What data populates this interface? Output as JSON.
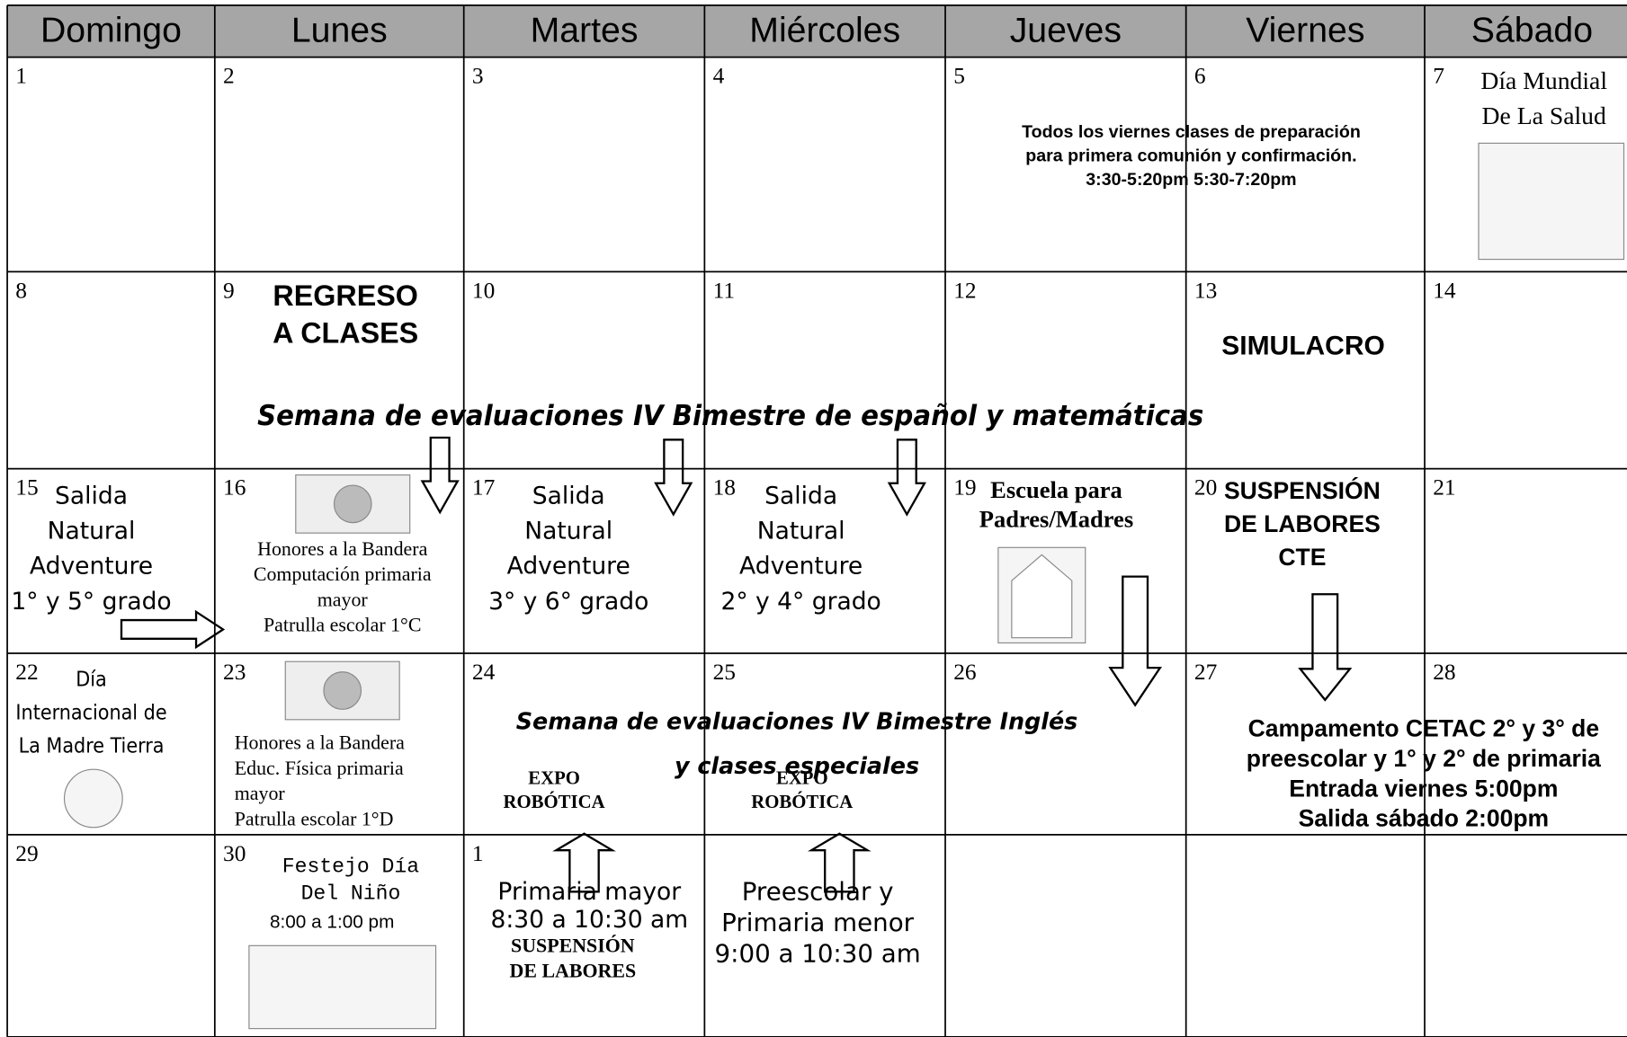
{
  "days": [
    "Domingo",
    "Lunes",
    "Martes",
    "Miércoles",
    "Jueves",
    "Viernes",
    "Sábado"
  ],
  "weeks": [
    [
      1,
      2,
      3,
      4,
      5,
      6,
      7
    ],
    [
      8,
      9,
      10,
      11,
      12,
      13,
      14
    ],
    [
      15,
      16,
      17,
      18,
      19,
      20,
      21
    ],
    [
      22,
      23,
      24,
      25,
      26,
      27,
      28
    ],
    [
      29,
      30,
      1,
      null,
      null,
      null,
      null
    ]
  ],
  "notes": [
    {
      "lines": [
        "Día Mundial",
        "De La Salud"
      ]
    },
    {
      "lines": [
        "Todos los viernes clases de preparación",
        "para primera comunión y confirmación.",
        "3:30-5:20pm    5:30-7:20pm"
      ]
    },
    {
      "lines": [
        "REGRESO",
        "A CLASES"
      ]
    },
    {
      "lines": [
        "SIMULACRO"
      ]
    },
    {
      "lines": [
        "Semana de evaluaciones IV  Bimestre de español y matemáticas"
      ]
    },
    {
      "lines": [
        "Salida",
        "Natural",
        "Adventure",
        "1° y 5° grado"
      ]
    },
    {
      "lines": [
        "Honores a la Bandera",
        "Computación primaria",
        "mayor",
        "Patrulla escolar  1°C"
      ]
    },
    {
      "lines": [
        "Salida",
        "Natural",
        "Adventure",
        "3° y 6° grado"
      ]
    },
    {
      "lines": [
        "Salida",
        "Natural",
        "Adventure",
        "2° y 4° grado"
      ]
    },
    {
      "lines": [
        "Escuela para",
        "Padres/Madres"
      ]
    },
    {
      "lines": [
        "SUSPENSIÓN",
        "DE LABORES",
        "CTE"
      ]
    },
    {
      "lines": [
        "Día",
        "Internacional de",
        "La Madre Tierra"
      ]
    },
    {
      "lines": [
        "Honores a la Bandera",
        "Educ. Física primaria",
        "mayor",
        "Patrulla escolar  1°D"
      ]
    },
    {
      "lines": [
        "Semana de evaluaciones IV Bimestre Inglés",
        "y clases especiales"
      ]
    },
    {
      "lines": [
        "EXPO",
        "ROBÓTICA"
      ]
    },
    {
      "lines": [
        "EXPO",
        "ROBÓTICA"
      ]
    },
    {
      "lines": [
        "Campamento CETAC 2° y 3°  de",
        "preescolar y 1° y 2° de primaria",
        "Entrada viernes 5:00pm",
        "Salida sábado 2:00pm"
      ]
    },
    {
      "lines": [
        "Festejo Día",
        "Del Niño"
      ]
    },
    {
      "lines": [
        "8:00 a 1:00 pm"
      ]
    },
    {
      "lines": [
        "Primaria mayor",
        "8:30 a 10:30 am"
      ]
    },
    {
      "lines": [
        "SUSPENSIÓN",
        "DE LABORES"
      ]
    },
    {
      "lines": [
        "Preescolar y",
        "Primaria menor",
        "9:00 a 10:30 am"
      ]
    }
  ]
}
